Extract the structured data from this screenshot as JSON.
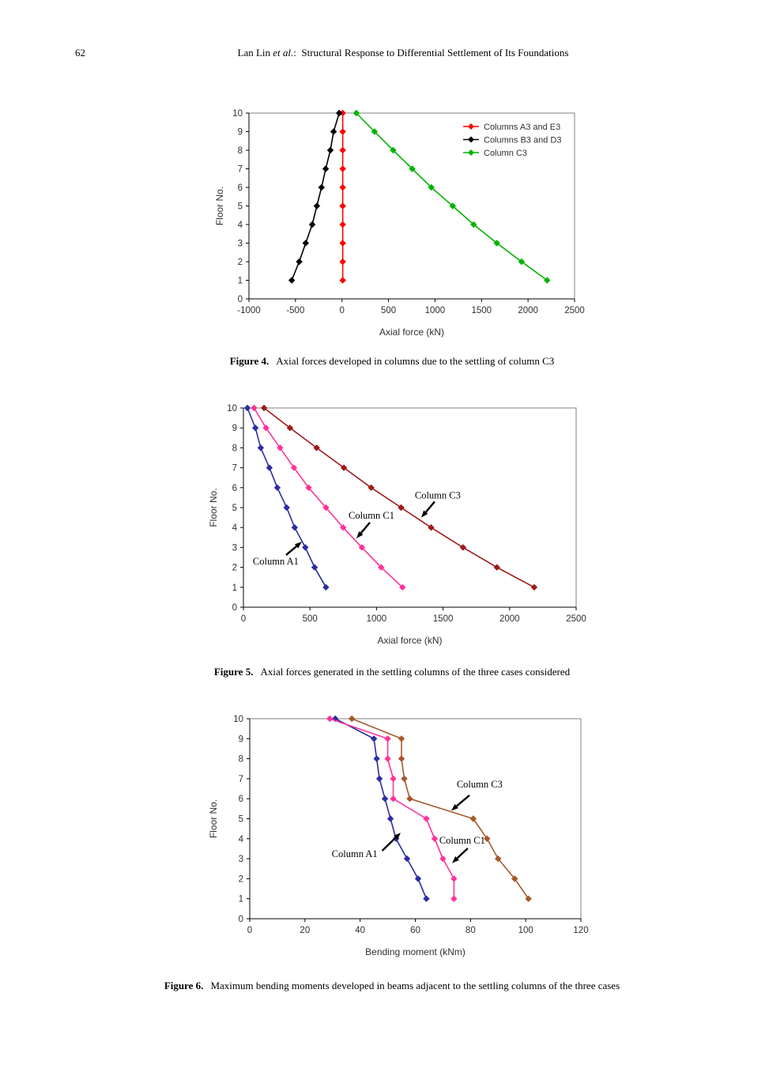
{
  "page": {
    "number": "62",
    "title_pre": "Lan Lin ",
    "title_italic": "et al.",
    "title_post": ":  Structural Response to Differential Settlement of Its Foundations"
  },
  "figures": [
    {
      "caption_label": "Figure 4.",
      "caption_text": "Axial forces developed in columns due to the settling of column C3"
    },
    {
      "caption_label": "Figure 5.",
      "caption_text": "Axial forces generated in the settling columns of the three cases considered"
    },
    {
      "caption_label": "Figure 6.",
      "caption_text": "Maximum bending moments developed in beams adjacent to the settling columns of the three cases"
    }
  ],
  "chart_data": [
    {
      "id": "figure4",
      "type": "line",
      "title": "",
      "xlabel": "Axial force (kN)",
      "ylabel": "Floor No.",
      "xlim": [
        -1000,
        2500
      ],
      "xticks": [
        -1000,
        -500,
        0,
        500,
        1000,
        1500,
        2000,
        2500
      ],
      "ylim": [
        0,
        10
      ],
      "yticks": [
        0,
        1,
        2,
        3,
        4,
        5,
        6,
        7,
        8,
        9,
        10
      ],
      "grid": false,
      "legend_position": "top-right-inside",
      "show_legend": true,
      "floors": [
        10,
        9,
        8,
        7,
        6,
        5,
        4,
        3,
        2,
        1
      ],
      "series": [
        {
          "name": "Columns A3 and E3",
          "color": "#FF0000",
          "values": [
            8,
            8,
            8,
            8,
            8,
            8,
            8,
            8,
            8,
            8
          ]
        },
        {
          "name": "Columns B3 and D3",
          "color": "#000000",
          "values": [
            -30,
            -90,
            -125,
            -175,
            -220,
            -270,
            -320,
            -390,
            -460,
            -540
          ]
        },
        {
          "name": "Column C3",
          "color": "#00B400",
          "values": [
            155,
            350,
            550,
            755,
            960,
            1190,
            1415,
            1665,
            1930,
            2205
          ]
        }
      ],
      "annotations": []
    },
    {
      "id": "figure5",
      "type": "line",
      "title": "",
      "xlabel": "Axial force (kN)",
      "ylabel": "Floor No.",
      "xlim": [
        0,
        2500
      ],
      "xticks": [
        0,
        500,
        1000,
        1500,
        2000,
        2500
      ],
      "ylim": [
        0,
        10
      ],
      "yticks": [
        0,
        1,
        2,
        3,
        4,
        5,
        6,
        7,
        8,
        9,
        10
      ],
      "grid": false,
      "show_legend": false,
      "floors": [
        10,
        9,
        8,
        7,
        6,
        5,
        4,
        3,
        2,
        1
      ],
      "series": [
        {
          "name": "Column A1",
          "color": "#2D2DA5",
          "values": [
            30,
            90,
            130,
            195,
            255,
            325,
            385,
            465,
            535,
            620
          ]
        },
        {
          "name": "Column C1",
          "color": "#FF3399",
          "values": [
            80,
            170,
            275,
            380,
            490,
            620,
            750,
            890,
            1035,
            1195
          ]
        },
        {
          "name": "Column C3",
          "color": "#9E1B1B",
          "values": [
            155,
            350,
            550,
            755,
            960,
            1185,
            1410,
            1650,
            1905,
            2185
          ]
        }
      ],
      "annotations": [
        {
          "text": "Column C3",
          "text_x": 1460,
          "text_floor": 5.62,
          "tail_x": 1437,
          "tail_floor": 5.3,
          "head_x": 1336,
          "head_floor": 4.5
        },
        {
          "text": "Column C1",
          "text_x": 962,
          "text_floor": 4.6,
          "tail_x": 950,
          "tail_floor": 4.25,
          "head_x": 849,
          "head_floor": 3.45
        },
        {
          "text": "Column A1",
          "text_x": 243,
          "text_floor": 2.3,
          "tail_x": 321,
          "tail_floor": 2.62,
          "head_x": 439,
          "head_floor": 3.29
        }
      ]
    },
    {
      "id": "figure6",
      "type": "line",
      "title": "",
      "xlabel": "Bending moment (kNm)",
      "ylabel": "Floor No.",
      "xlim": [
        0,
        120
      ],
      "xticks": [
        0,
        20,
        40,
        60,
        80,
        100,
        120
      ],
      "ylim": [
        0,
        10
      ],
      "yticks": [
        0,
        1,
        2,
        3,
        4,
        5,
        6,
        7,
        8,
        9,
        10
      ],
      "grid": false,
      "show_legend": false,
      "floors": [
        10,
        9,
        8,
        7,
        6,
        5,
        4,
        3,
        2,
        1
      ],
      "series": [
        {
          "name": "Column A1",
          "color": "#2D2DA5",
          "values": [
            31,
            45,
            46,
            47,
            49,
            51,
            53,
            57,
            61,
            64
          ]
        },
        {
          "name": "Column C1",
          "color": "#FF3399",
          "values": [
            29,
            50,
            50,
            52,
            52,
            64,
            67,
            70,
            74,
            74
          ]
        },
        {
          "name": "Column C3",
          "color": "#A6592A",
          "values": [
            37,
            55,
            55,
            56,
            58,
            81,
            86,
            90,
            96,
            101
          ]
        }
      ],
      "annotations": [
        {
          "text": "Column C3",
          "text_x": 83.3,
          "text_floor": 6.72,
          "tail_x": 79.6,
          "tail_floor": 6.17,
          "head_x": 73.0,
          "head_floor": 5.4
        },
        {
          "text": "Column C1",
          "text_x": 77.0,
          "text_floor": 3.91,
          "tail_x": 79.0,
          "tail_floor": 3.52,
          "head_x": 73.3,
          "head_floor": 2.78
        },
        {
          "text": "Column A1",
          "text_x": 38.0,
          "text_floor": 3.24,
          "tail_x": 48.0,
          "tail_floor": 3.4,
          "head_x": 54.7,
          "head_floor": 4.3
        }
      ]
    }
  ]
}
